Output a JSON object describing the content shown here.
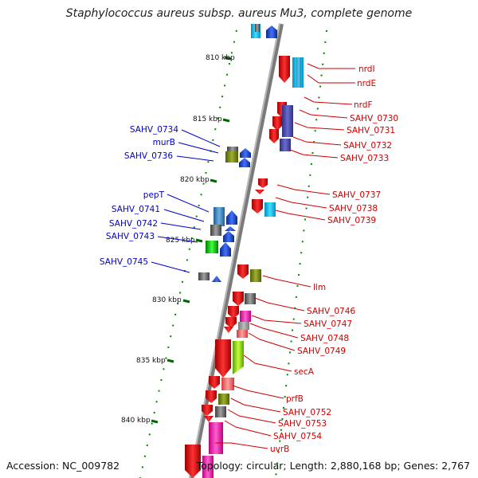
{
  "title": "Staphylococcus aureus subsp. aureus Mu3, complete genome",
  "accession": "Accession: NC_009782",
  "summary": "Topology: circular; Length: 2,880,168 bp; Genes: 2,767",
  "colors": {
    "forward_label": "#0000cc",
    "reverse_label": "#cc0000",
    "backbone": "#808080",
    "gc_ticks": "#008800",
    "scale_ticks": "#006600"
  },
  "scale_ticks": [
    "810 kbp",
    "815 kbp",
    "820 kbp",
    "825 kbp",
    "830 kbp",
    "835 kbp",
    "840 kbp"
  ],
  "forward_genes": [
    "SAHV_0734",
    "murB",
    "SAHV_0736",
    "pepT",
    "SAHV_0741",
    "SAHV_0742",
    "SAHV_0743",
    "SAHV_0745"
  ],
  "reverse_genes": [
    "nrdI",
    "nrdE",
    "nrdF",
    "SAHV_0730",
    "SAHV_0731",
    "SAHV_0732",
    "SAHV_0733",
    "SAHV_0737",
    "SAHV_0738",
    "SAHV_0739",
    "llm",
    "SAHV_0746",
    "SAHV_0747",
    "SAHV_0748",
    "SAHV_0749",
    "secA",
    "prfB",
    "SAHV_0752",
    "SAHV_0753",
    "SAHV_0754",
    "uvrB"
  ]
}
